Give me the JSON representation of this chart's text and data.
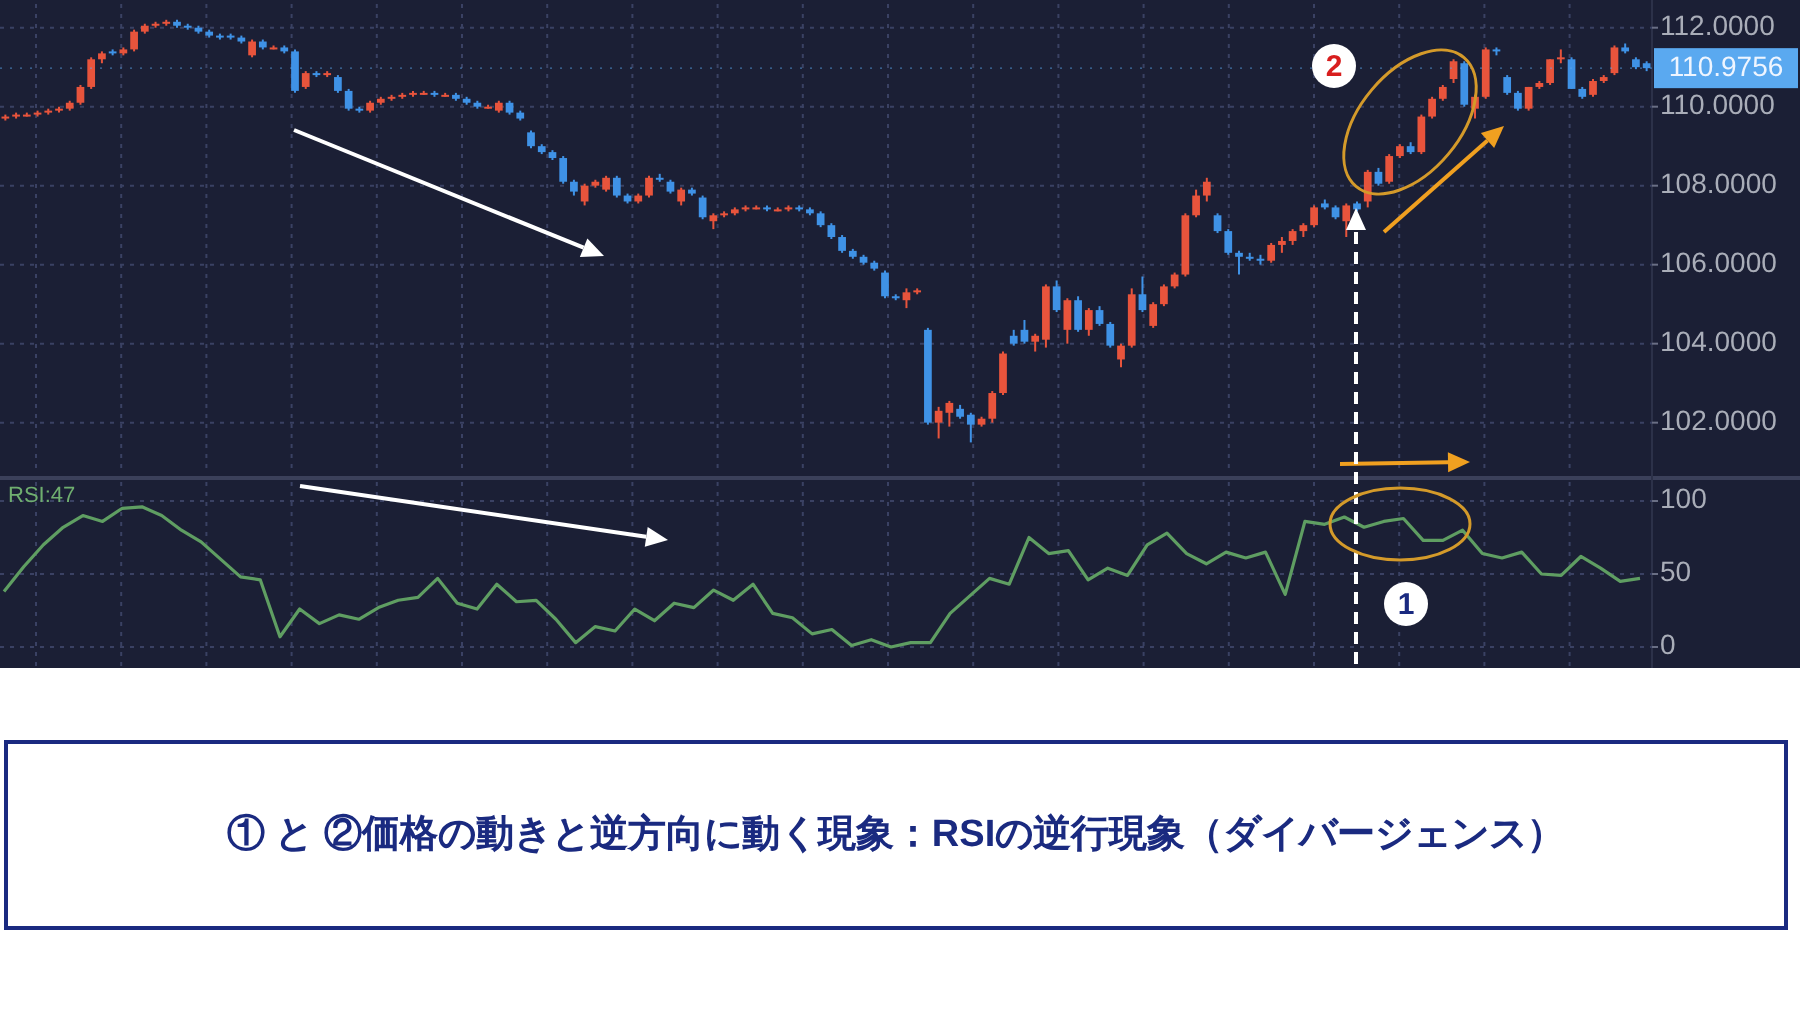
{
  "chart_data": [
    {
      "type": "candlestick",
      "categories": [
        null,
        null,
        null,
        null,
        null,
        null,
        null,
        null,
        null,
        null,
        null,
        null,
        null,
        null,
        null,
        null,
        null,
        null,
        null,
        null,
        null,
        null,
        null,
        null,
        null,
        null,
        null,
        null,
        null,
        null,
        null,
        null,
        null,
        null,
        null,
        null,
        null,
        null,
        null,
        null,
        null,
        null,
        null,
        null,
        null,
        null,
        null,
        null,
        null,
        null,
        null,
        null,
        null,
        null,
        null,
        null,
        null,
        null,
        null,
        null,
        null,
        null,
        null,
        null,
        null,
        null,
        null,
        null,
        null,
        null,
        null,
        null,
        null,
        null,
        null,
        null,
        null,
        null,
        null,
        null,
        null,
        null,
        null,
        null,
        null,
        null,
        null,
        null,
        null,
        null,
        null,
        null,
        null,
        null,
        null,
        null,
        null,
        null,
        null,
        null,
        null,
        null,
        null,
        null,
        null,
        null,
        null,
        null,
        null,
        null,
        null,
        null,
        null,
        null,
        null,
        null,
        null,
        null,
        null,
        null,
        null,
        null,
        null,
        null,
        null,
        null,
        null,
        null,
        null,
        null,
        null,
        null,
        null,
        null,
        null,
        null,
        null,
        null,
        null,
        null,
        null,
        null,
        null,
        null,
        null,
        null,
        null,
        null,
        null,
        null,
        null,
        null,
        null,
        null
      ],
      "ohlc": [
        [
          109.7,
          109.8,
          109.65,
          109.75
        ],
        [
          109.75,
          109.85,
          109.7,
          109.8
        ],
        [
          109.8,
          109.85,
          109.75,
          109.8
        ],
        [
          109.8,
          109.9,
          109.75,
          109.85
        ],
        [
          109.85,
          109.95,
          109.8,
          109.9
        ],
        [
          109.9,
          110.0,
          109.85,
          109.95
        ],
        [
          109.95,
          110.15,
          109.9,
          110.1
        ],
        [
          110.1,
          110.55,
          110.05,
          110.5
        ],
        [
          110.5,
          111.25,
          110.45,
          111.2
        ],
        [
          111.2,
          111.4,
          111.1,
          111.35
        ],
        [
          111.4,
          111.45,
          111.3,
          111.35
        ],
        [
          111.35,
          111.5,
          111.3,
          111.45
        ],
        [
          111.45,
          111.95,
          111.4,
          111.9
        ],
        [
          111.9,
          112.1,
          111.85,
          112.05
        ],
        [
          112.05,
          112.15,
          112.0,
          112.1
        ],
        [
          112.1,
          112.2,
          112.05,
          112.15
        ],
        [
          112.15,
          112.2,
          112.0,
          112.05
        ],
        [
          112.05,
          112.1,
          111.95,
          112.0
        ],
        [
          112.0,
          112.05,
          111.85,
          111.9
        ],
        [
          111.9,
          111.95,
          111.75,
          111.8
        ],
        [
          111.8,
          111.85,
          111.7,
          111.75
        ],
        [
          111.8,
          111.85,
          111.7,
          111.75
        ],
        [
          111.75,
          111.8,
          111.6,
          111.65
        ],
        [
          111.3,
          111.7,
          111.25,
          111.65
        ],
        [
          111.65,
          111.7,
          111.45,
          111.5
        ],
        [
          111.5,
          111.55,
          111.45,
          111.5
        ],
        [
          111.5,
          111.55,
          111.35,
          111.4
        ],
        [
          111.4,
          111.45,
          110.35,
          110.4
        ],
        [
          110.5,
          110.9,
          110.45,
          110.85
        ],
        [
          110.85,
          110.9,
          110.75,
          110.8
        ],
        [
          110.8,
          110.9,
          110.75,
          110.85
        ],
        [
          110.75,
          110.8,
          110.35,
          110.4
        ],
        [
          110.4,
          110.45,
          109.9,
          109.95
        ],
        [
          109.95,
          110.0,
          109.85,
          109.9
        ],
        [
          109.9,
          110.15,
          109.85,
          110.1
        ],
        [
          110.1,
          110.25,
          110.05,
          110.2
        ],
        [
          110.2,
          110.3,
          110.15,
          110.25
        ],
        [
          110.25,
          110.35,
          110.2,
          110.3
        ],
        [
          110.3,
          110.4,
          110.25,
          110.35
        ],
        [
          110.35,
          110.4,
          110.3,
          110.35
        ],
        [
          110.35,
          110.4,
          110.25,
          110.3
        ],
        [
          110.3,
          110.35,
          110.25,
          110.3
        ],
        [
          110.3,
          110.35,
          110.15,
          110.2
        ],
        [
          110.2,
          110.25,
          110.05,
          110.1
        ],
        [
          110.1,
          110.15,
          109.95,
          110.0
        ],
        [
          110.0,
          110.05,
          109.95,
          110.0
        ],
        [
          109.9,
          110.15,
          109.85,
          110.1
        ],
        [
          110.1,
          110.15,
          109.8,
          109.85
        ],
        [
          109.85,
          109.9,
          109.65,
          109.7
        ],
        [
          109.35,
          109.4,
          108.95,
          109.0
        ],
        [
          109.0,
          109.05,
          108.8,
          108.85
        ],
        [
          108.85,
          108.9,
          108.65,
          108.7
        ],
        [
          108.7,
          108.75,
          108.05,
          108.1
        ],
        [
          108.1,
          108.15,
          107.75,
          107.85
        ],
        [
          107.6,
          108.05,
          107.5,
          108.0
        ],
        [
          108.0,
          108.15,
          107.95,
          108.1
        ],
        [
          107.9,
          108.25,
          107.85,
          108.2
        ],
        [
          108.2,
          108.25,
          107.7,
          107.75
        ],
        [
          107.75,
          107.8,
          107.55,
          107.6
        ],
        [
          107.6,
          107.8,
          107.55,
          107.75
        ],
        [
          107.75,
          108.25,
          107.7,
          108.2
        ],
        [
          108.2,
          108.3,
          108.1,
          108.15
        ],
        [
          108.1,
          108.15,
          107.8,
          107.85
        ],
        [
          107.6,
          107.95,
          107.5,
          107.9
        ],
        [
          107.9,
          107.95,
          107.75,
          107.8
        ],
        [
          107.7,
          107.75,
          107.15,
          107.2
        ],
        [
          107.1,
          107.3,
          106.9,
          107.25
        ],
        [
          107.25,
          107.35,
          107.2,
          107.3
        ],
        [
          107.3,
          107.45,
          107.25,
          107.4
        ],
        [
          107.4,
          107.5,
          107.35,
          107.45
        ],
        [
          107.45,
          107.5,
          107.4,
          107.45
        ],
        [
          107.45,
          107.5,
          107.35,
          107.4
        ],
        [
          107.4,
          107.45,
          107.35,
          107.4
        ],
        [
          107.4,
          107.5,
          107.35,
          107.45
        ],
        [
          107.45,
          107.5,
          107.35,
          107.4
        ],
        [
          107.4,
          107.45,
          107.25,
          107.3
        ],
        [
          107.3,
          107.35,
          106.95,
          107.0
        ],
        [
          107.0,
          107.05,
          106.65,
          106.7
        ],
        [
          106.7,
          106.75,
          106.3,
          106.35
        ],
        [
          106.35,
          106.4,
          106.15,
          106.2
        ],
        [
          106.2,
          106.25,
          106.0,
          106.05
        ],
        [
          106.05,
          106.1,
          105.85,
          105.9
        ],
        [
          105.8,
          105.85,
          105.15,
          105.2
        ],
        [
          105.2,
          105.25,
          105.1,
          105.15
        ],
        [
          105.1,
          105.4,
          104.9,
          105.3
        ],
        [
          105.3,
          105.4,
          105.25,
          105.35
        ],
        [
          104.35,
          104.4,
          101.95,
          102.0
        ],
        [
          102.0,
          102.4,
          101.6,
          102.3
        ],
        [
          102.25,
          102.55,
          101.9,
          102.5
        ],
        [
          102.35,
          102.45,
          102.1,
          102.15
        ],
        [
          102.2,
          102.25,
          101.5,
          101.95
        ],
        [
          101.95,
          102.15,
          101.9,
          102.1
        ],
        [
          102.1,
          102.8,
          102.0,
          102.75
        ],
        [
          102.75,
          103.8,
          102.7,
          103.75
        ],
        [
          104.2,
          104.35,
          103.95,
          104.0
        ],
        [
          104.35,
          104.6,
          104.0,
          104.05
        ],
        [
          104.05,
          104.25,
          103.8,
          104.2
        ],
        [
          104.1,
          105.5,
          103.9,
          105.45
        ],
        [
          105.45,
          105.6,
          104.8,
          104.85
        ],
        [
          104.35,
          105.15,
          104.0,
          105.1
        ],
        [
          105.1,
          105.2,
          104.3,
          104.35
        ],
        [
          104.35,
          104.9,
          104.2,
          104.85
        ],
        [
          104.85,
          104.95,
          104.45,
          104.5
        ],
        [
          104.5,
          104.55,
          103.9,
          103.95
        ],
        [
          103.6,
          104.0,
          103.4,
          103.95
        ],
        [
          103.95,
          105.4,
          103.9,
          105.25
        ],
        [
          105.25,
          105.7,
          104.8,
          104.85
        ],
        [
          104.45,
          105.05,
          104.4,
          105.0
        ],
        [
          105.0,
          105.5,
          104.95,
          105.45
        ],
        [
          105.45,
          105.8,
          105.4,
          105.75
        ],
        [
          105.75,
          107.3,
          105.7,
          107.25
        ],
        [
          107.25,
          107.9,
          107.2,
          107.75
        ],
        [
          107.75,
          108.2,
          107.6,
          108.1
        ],
        [
          107.25,
          107.3,
          106.8,
          106.85
        ],
        [
          106.85,
          106.9,
          106.25,
          106.3
        ],
        [
          106.3,
          106.35,
          105.75,
          106.2
        ],
        [
          106.2,
          106.3,
          106.1,
          106.15
        ],
        [
          106.15,
          106.25,
          106.0,
          106.1
        ],
        [
          106.1,
          106.55,
          106.05,
          106.5
        ],
        [
          106.5,
          106.7,
          106.3,
          106.6
        ],
        [
          106.6,
          106.9,
          106.5,
          106.85
        ],
        [
          106.85,
          107.05,
          106.7,
          107.0
        ],
        [
          107.0,
          107.5,
          106.95,
          107.45
        ],
        [
          107.55,
          107.65,
          107.4,
          107.45
        ],
        [
          107.45,
          107.5,
          107.15,
          107.2
        ],
        [
          107.1,
          107.55,
          106.7,
          107.5
        ],
        [
          107.55,
          107.6,
          107.35,
          107.4
        ],
        [
          107.6,
          108.4,
          107.45,
          108.35
        ],
        [
          108.35,
          108.45,
          108.0,
          108.05
        ],
        [
          108.1,
          108.8,
          108.05,
          108.75
        ],
        [
          108.75,
          109.05,
          108.7,
          109.0
        ],
        [
          109.0,
          109.1,
          108.8,
          108.85
        ],
        [
          108.85,
          109.8,
          108.8,
          109.75
        ],
        [
          109.75,
          110.25,
          109.7,
          110.2
        ],
        [
          110.2,
          110.55,
          110.15,
          110.5
        ],
        [
          110.7,
          111.2,
          110.6,
          111.15
        ],
        [
          111.1,
          111.15,
          110.0,
          110.05
        ],
        [
          109.95,
          110.3,
          109.7,
          110.25
        ],
        [
          110.25,
          111.5,
          110.2,
          111.45
        ],
        [
          111.45,
          111.5,
          111.3,
          111.4
        ],
        [
          110.75,
          110.8,
          110.3,
          110.35
        ],
        [
          110.35,
          110.4,
          109.9,
          109.95
        ],
        [
          109.95,
          110.5,
          109.9,
          110.5
        ],
        [
          110.5,
          110.65,
          110.45,
          110.6
        ],
        [
          110.6,
          111.2,
          110.55,
          111.2
        ],
        [
          111.2,
          111.45,
          111.1,
          111.25
        ],
        [
          111.2,
          111.25,
          110.45,
          110.45
        ],
        [
          110.45,
          110.5,
          110.2,
          110.25
        ],
        [
          110.3,
          110.7,
          110.25,
          110.65
        ],
        [
          110.65,
          110.8,
          110.6,
          110.75
        ],
        [
          110.85,
          111.55,
          110.8,
          111.5
        ],
        [
          111.5,
          111.6,
          111.35,
          111.4
        ],
        [
          111.2,
          111.25,
          110.95,
          111.0
        ],
        [
          111.1,
          111.15,
          110.9,
          110.9756
        ]
      ],
      "ylim": [
        100.7,
        112.6
      ],
      "yticks": [
        {
          "value": 102,
          "label": "102.0000"
        },
        {
          "value": 104,
          "label": "104.0000"
        },
        {
          "value": 106,
          "label": "106.0000"
        },
        {
          "value": 108,
          "label": "108.0000"
        },
        {
          "value": 110,
          "label": "110.0000"
        },
        {
          "value": 112,
          "label": "112.0000"
        }
      ],
      "grid": true,
      "tick_labels": "y",
      "ref_lines": [
        {
          "axis": "y",
          "value": 110.9756,
          "label": "110.9756",
          "color": "#5aa9f0"
        }
      ],
      "annotations": [
        "2"
      ]
    },
    {
      "type": "line",
      "title": "RSI:47",
      "series": [
        {
          "color": "#5f9e62",
          "values": [
            38,
            55,
            70,
            82,
            90,
            86,
            95,
            96,
            90,
            80,
            72,
            60,
            48,
            46,
            7,
            26,
            16,
            22,
            19,
            27,
            32,
            34,
            47,
            30,
            26,
            43,
            31,
            32,
            19,
            3,
            14,
            11,
            26,
            18,
            30,
            27,
            39,
            32,
            43,
            23,
            20,
            9,
            12,
            1,
            5,
            0,
            3,
            3,
            23,
            35,
            47,
            43,
            75,
            64,
            66,
            46,
            54,
            49,
            70,
            78,
            64,
            57,
            65,
            61,
            65,
            36,
            86,
            84,
            89,
            82,
            86,
            88,
            73,
            73,
            80,
            64,
            61,
            65,
            50,
            49,
            62,
            54,
            45,
            47
          ]
        }
      ],
      "categories": [
        null,
        null,
        null,
        null,
        null,
        null,
        null,
        null,
        null,
        null,
        null,
        null,
        null,
        null,
        null,
        null,
        null,
        null,
        null,
        null,
        null,
        null,
        null,
        null,
        null,
        null,
        null,
        null,
        null,
        null,
        null,
        null,
        null,
        null,
        null,
        null,
        null,
        null,
        null,
        null,
        null,
        null,
        null,
        null,
        null,
        null,
        null,
        null,
        null,
        null,
        null,
        null,
        null,
        null,
        null,
        null,
        null,
        null,
        null,
        null,
        null,
        null,
        null,
        null,
        null,
        null,
        null,
        null,
        null,
        null,
        null,
        null,
        null,
        null,
        null,
        null,
        null,
        null,
        null,
        null,
        null,
        null,
        null,
        null
      ],
      "ylim": [
        -13,
        113
      ],
      "yticks": [
        0,
        50,
        100
      ],
      "grid": true,
      "tick_labels": "y",
      "annotations": [
        "1"
      ]
    },
    {
      "type": "other",
      "annotations": [
        "① と ②価格の動きと逆方向に動く現象：RSIの逆行現象（ダイバージェンス）"
      ]
    }
  ]
}
